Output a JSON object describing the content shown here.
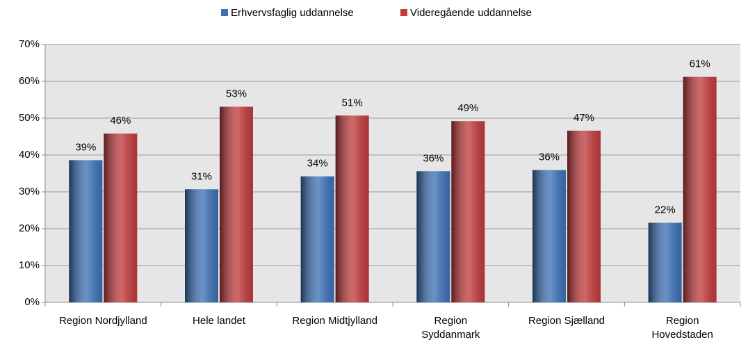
{
  "chart_data": {
    "type": "bar",
    "categories": [
      "Region Nordjylland",
      "Hele landet",
      "Region Midtjylland",
      "Region\nSyddanmark",
      "Region Sjælland",
      "Region\nHovedstaden"
    ],
    "series": [
      {
        "name": "Erhvervsfaglig uddannelse",
        "color": "#3d72b8",
        "values": [
          38.6,
          30.7,
          34.2,
          35.6,
          35.9,
          21.6
        ],
        "value_labels": [
          "39%",
          "31%",
          "34%",
          "36%",
          "36%",
          "22%"
        ]
      },
      {
        "name": "Videregående uddannelse",
        "color": "#c23b3d",
        "values": [
          45.8,
          53.1,
          50.7,
          49.2,
          46.6,
          61.2
        ],
        "value_labels": [
          "46%",
          "53%",
          "51%",
          "49%",
          "47%",
          "61%"
        ]
      }
    ],
    "ylim": [
      0,
      70
    ],
    "yticks": [
      {
        "value": 0,
        "label": "0%"
      },
      {
        "value": 10,
        "label": "10%"
      },
      {
        "value": 20,
        "label": "20%"
      },
      {
        "value": 30,
        "label": "30%"
      },
      {
        "value": 40,
        "label": "40%"
      },
      {
        "value": 50,
        "label": "50%"
      },
      {
        "value": 60,
        "label": "60%"
      },
      {
        "value": 70,
        "label": "70%"
      }
    ],
    "grid": true,
    "legend": "top"
  }
}
